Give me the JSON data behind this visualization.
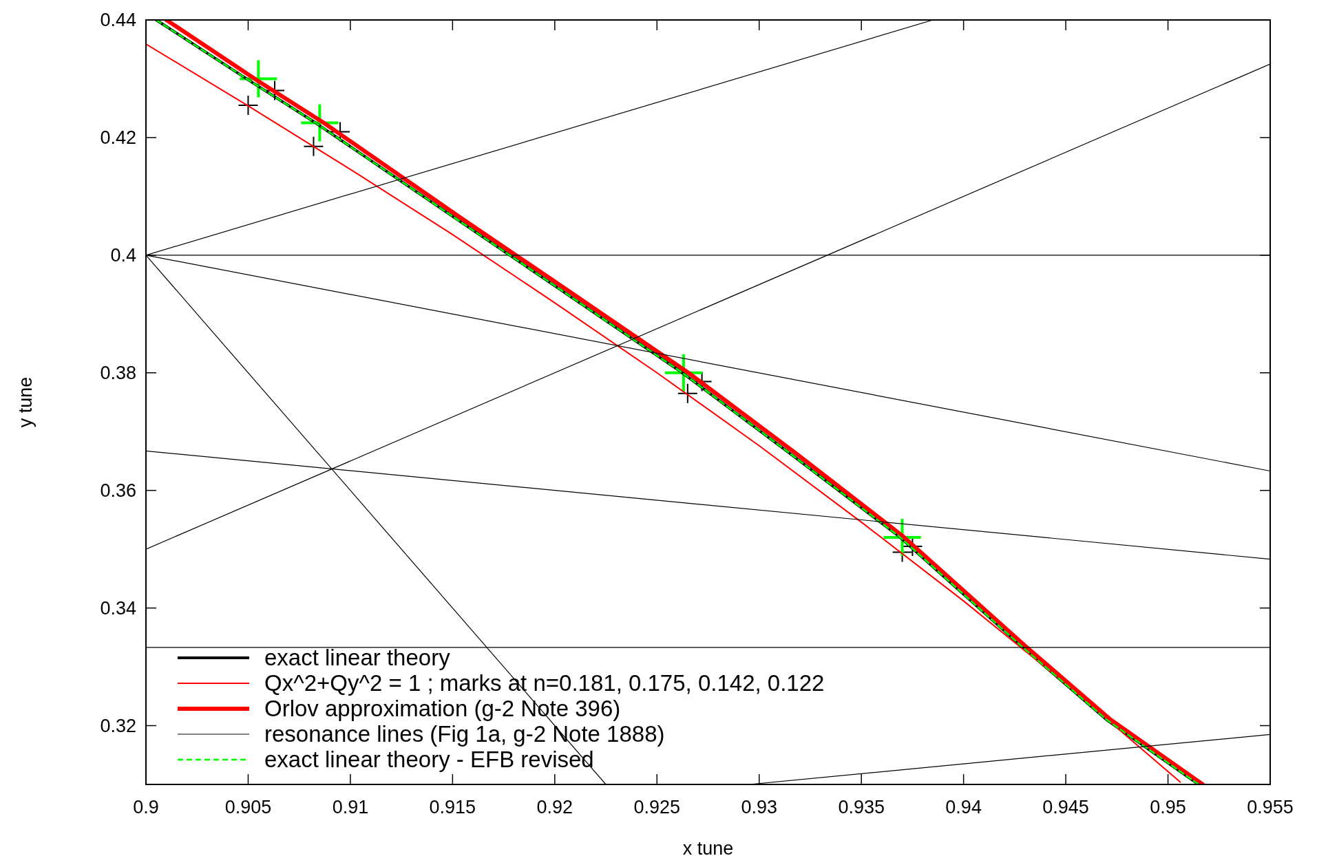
{
  "chart_data": {
    "type": "line",
    "xlabel": "x tune",
    "ylabel": "y tune",
    "xlim": [
      0.9,
      0.955
    ],
    "ylim": [
      0.31,
      0.44
    ],
    "xticks": [
      0.9,
      0.905,
      0.91,
      0.915,
      0.92,
      0.925,
      0.93,
      0.935,
      0.94,
      0.945,
      0.95,
      0.955
    ],
    "yticks": [
      0.32,
      0.34,
      0.36,
      0.38,
      0.4,
      0.42,
      0.44
    ],
    "grid": false,
    "legend": "bottom left",
    "series": [
      {
        "name": "exact linear theory",
        "color": "#000000",
        "line_style": "solid",
        "x": [
          0.9005,
          0.9051,
          0.9083,
          0.915,
          0.92,
          0.9262,
          0.9315,
          0.9368,
          0.9429,
          0.947,
          0.9515
        ],
        "values": [
          0.44,
          0.4296,
          0.4225,
          0.4066,
          0.3948,
          0.3801,
          0.3663,
          0.3523,
          0.3333,
          0.321,
          0.31
        ]
      },
      {
        "name": "Qx^2+Qy^2 = 1 ; marks at n=0.181, 0.175, 0.142, 0.122",
        "color": "#ff0000",
        "line_style": "solid",
        "x": [
          0.9,
          0.905,
          0.91,
          0.915,
          0.92,
          0.925,
          0.93,
          0.935,
          0.94,
          0.945,
          0.95,
          0.9506
        ],
        "values": [
          0.4359,
          0.4254,
          0.4146,
          0.4035,
          0.3919,
          0.38,
          0.3676,
          0.3546,
          0.3412,
          0.3271,
          0.3122,
          0.3104
        ]
      },
      {
        "name": "Orlov approximation (g-2 Note 396)",
        "color": "#ff0000",
        "line_style": "solid",
        "x": [
          0.901,
          0.9055,
          0.9087,
          0.9153,
          0.9203,
          0.9265,
          0.9318,
          0.937,
          0.9431,
          0.9472,
          0.9517
        ],
        "values": [
          0.44,
          0.4296,
          0.4225,
          0.4066,
          0.3948,
          0.3801,
          0.3663,
          0.3523,
          0.3333,
          0.321,
          0.31
        ]
      },
      {
        "name": "resonance lines (Fig 1a, g-2 Note 1888)",
        "color": "#000000",
        "line_style": "solid",
        "x": [
          0.9,
          0.955
        ],
        "values": [
          0.4,
          0.4
        ]
      },
      {
        "name": "exact linear theory - EFB revised",
        "color": "#00ff00",
        "line_style": "dashed",
        "x": [
          0.9005,
          0.9051,
          0.9083,
          0.915,
          0.92,
          0.9262,
          0.9315,
          0.9368,
          0.9429,
          0.947,
          0.9515
        ],
        "values": [
          0.44,
          0.4296,
          0.4225,
          0.4066,
          0.3948,
          0.3801,
          0.3663,
          0.3523,
          0.3333,
          0.321,
          0.31
        ]
      },
      {
        "type": "scatter",
        "marker": "cross",
        "color": "#000000",
        "x": [
          0.905,
          0.9082,
          0.9265,
          0.937,
          0.9063,
          0.9095,
          0.9272,
          0.9375
        ],
        "values": [
          0.4255,
          0.4185,
          0.3765,
          0.3495,
          0.428,
          0.421,
          0.3785,
          0.3505
        ]
      },
      {
        "type": "scatter",
        "marker": "cross",
        "color": "#00ff00",
        "x": [
          0.9055,
          0.9085,
          0.9263,
          0.937
        ],
        "values": [
          0.43,
          0.4225,
          0.38,
          0.352
        ]
      },
      {
        "color": "#000000",
        "line_style": "solid",
        "x": [
          0.9,
          0.955
        ],
        "values": [
          0.3333,
          0.3333
        ]
      },
      {
        "color": "#000000",
        "line_style": "solid",
        "x": [
          0.9,
          0.9385
        ],
        "values": [
          0.4,
          0.44
        ]
      },
      {
        "color": "#000000",
        "line_style": "solid",
        "x": [
          0.9,
          0.955
        ],
        "values": [
          0.35,
          0.4325
        ]
      },
      {
        "color": "#000000",
        "line_style": "solid",
        "x": [
          0.9,
          0.955
        ],
        "values": [
          0.4,
          0.3633
        ]
      },
      {
        "color": "#000000",
        "line_style": "solid",
        "x": [
          0.9,
          0.955
        ],
        "values": [
          0.3667,
          0.3483
        ]
      },
      {
        "color": "#000000",
        "line_style": "solid",
        "x": [
          0.9,
          0.9225
        ],
        "values": [
          0.4,
          0.31
        ]
      },
      {
        "color": "#000000",
        "line_style": "solid",
        "x": [
          0.9295,
          0.955
        ],
        "values": [
          0.31,
          0.3185
        ]
      }
    ]
  }
}
